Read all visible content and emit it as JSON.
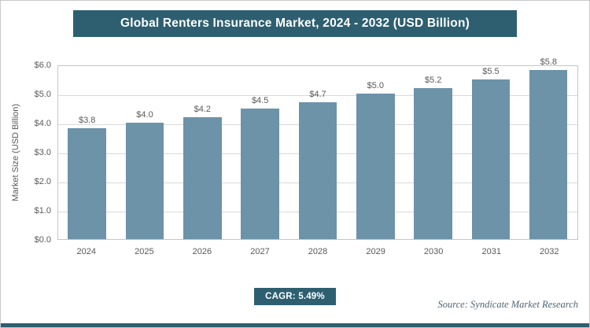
{
  "header": {
    "title": "Global Renters Insurance Market, 2024 - 2032 (USD Billion)"
  },
  "chart_data": {
    "type": "bar",
    "title": "Global Renters Insurance Market, 2024 - 2032 (USD Billion)",
    "categories": [
      "2024",
      "2025",
      "2026",
      "2027",
      "2028",
      "2029",
      "2030",
      "2031",
      "2032"
    ],
    "values": [
      3.8,
      4.0,
      4.2,
      4.5,
      4.7,
      5.0,
      5.2,
      5.5,
      5.8
    ],
    "value_labels": [
      "$3.8",
      "$4.0",
      "$4.2",
      "$4.5",
      "$4.7",
      "$5.0",
      "$5.2",
      "$5.5",
      "$5.8"
    ],
    "xlabel": "",
    "ylabel": "Market Size (USD Billion)",
    "ylim": [
      0,
      6
    ],
    "yticks_top_to_bottom": [
      "$6.0",
      "$5.0",
      "$4.0",
      "$3.0",
      "$2.0",
      "$1.0",
      "$0.0"
    ],
    "grid": true,
    "legend_position": "none"
  },
  "footer": {
    "cagr_label": "CAGR: 5.49%",
    "source": "Source: Syndicate Market Research"
  },
  "colors": {
    "accent": "#2d5f70",
    "bar": "#6c93a8",
    "grid": "#d9d9d9",
    "text": "#595959",
    "source_text": "#4f6573"
  }
}
